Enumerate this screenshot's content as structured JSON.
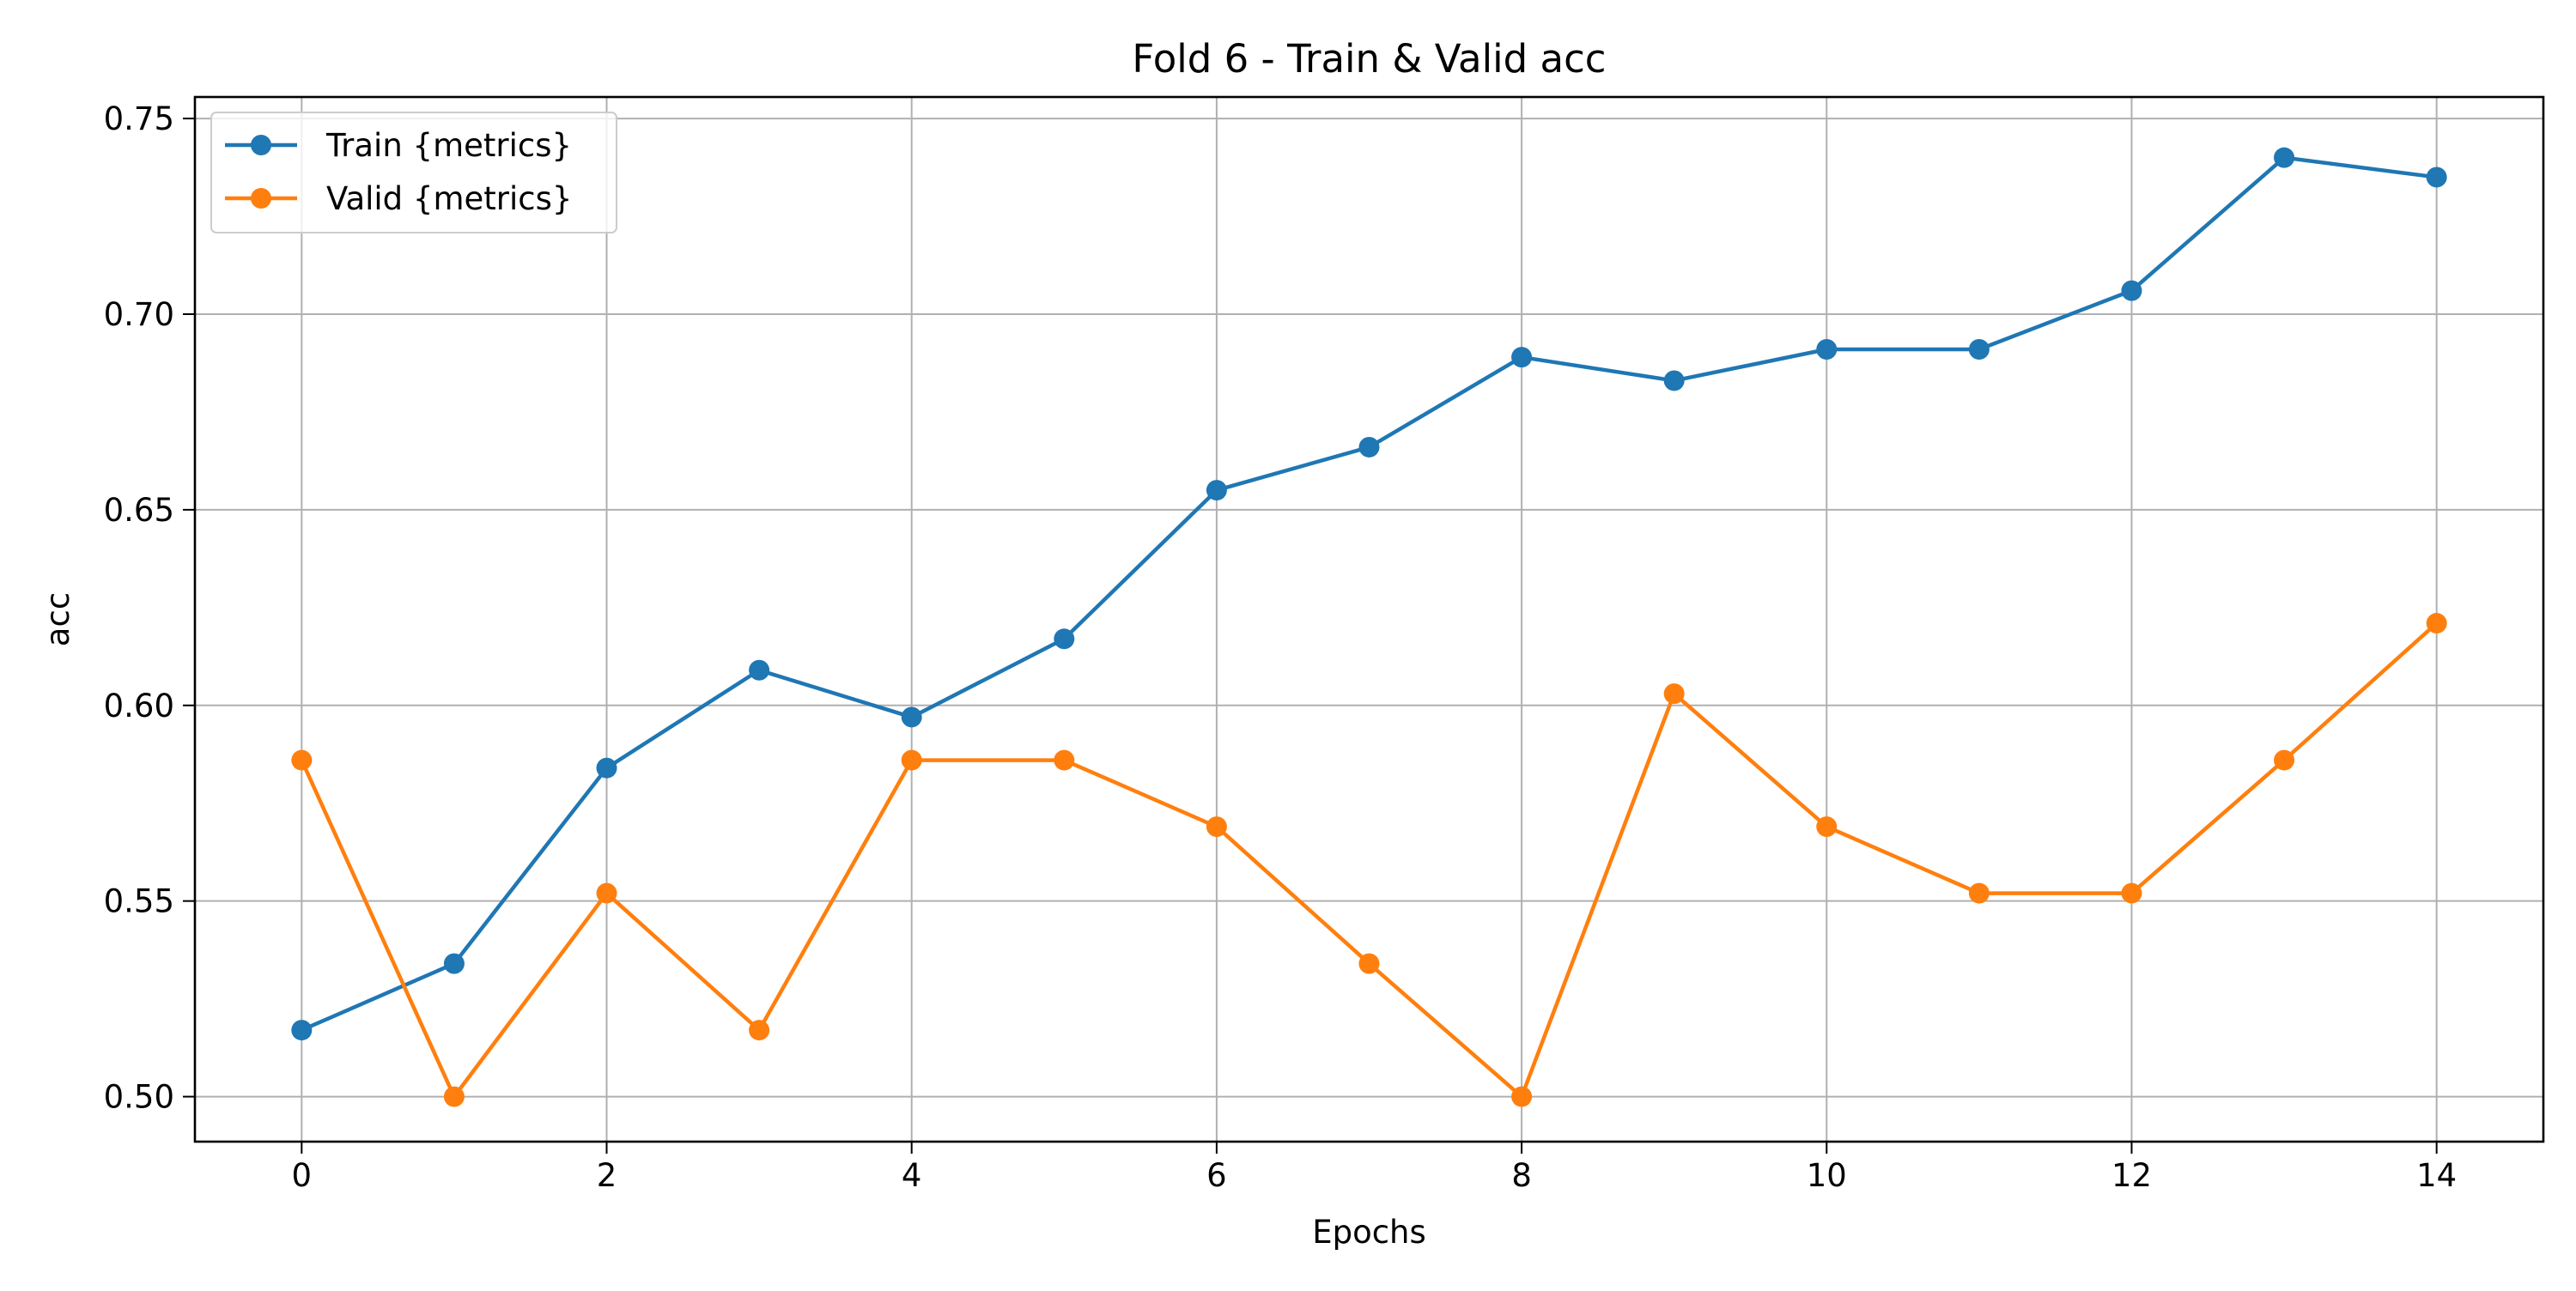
{
  "chart_data": {
    "type": "line",
    "title": "Fold 6 - Train & Valid acc",
    "xlabel": "Epochs",
    "ylabel": "acc",
    "x": [
      0,
      1,
      2,
      3,
      4,
      5,
      6,
      7,
      8,
      9,
      10,
      11,
      12,
      13,
      14
    ],
    "xlim": [
      -0.7,
      14.7
    ],
    "ylim": [
      0.4885,
      0.7555
    ],
    "xticks": [
      0,
      2,
      4,
      6,
      8,
      10,
      12,
      14
    ],
    "yticks": [
      0.5,
      0.55,
      0.6,
      0.65,
      0.7,
      0.75
    ],
    "xtick_labels": [
      "0",
      "2",
      "4",
      "6",
      "8",
      "10",
      "12",
      "14"
    ],
    "ytick_labels": [
      "0.50",
      "0.55",
      "0.60",
      "0.65",
      "0.70",
      "0.75"
    ],
    "grid": true,
    "legend_position": "upper-left",
    "series": [
      {
        "name": "Train {metrics}",
        "color": "#1f77b4",
        "marker": "circle",
        "values": [
          0.517,
          0.534,
          0.584,
          0.609,
          0.597,
          0.617,
          0.655,
          0.666,
          0.689,
          0.683,
          0.691,
          0.691,
          0.706,
          0.74,
          0.735
        ]
      },
      {
        "name": "Valid {metrics}",
        "color": "#ff7f0e",
        "marker": "circle",
        "values": [
          0.586,
          0.5,
          0.552,
          0.517,
          0.586,
          0.586,
          0.569,
          0.534,
          0.5,
          0.603,
          0.569,
          0.552,
          0.552,
          0.586,
          0.621
        ]
      }
    ]
  }
}
